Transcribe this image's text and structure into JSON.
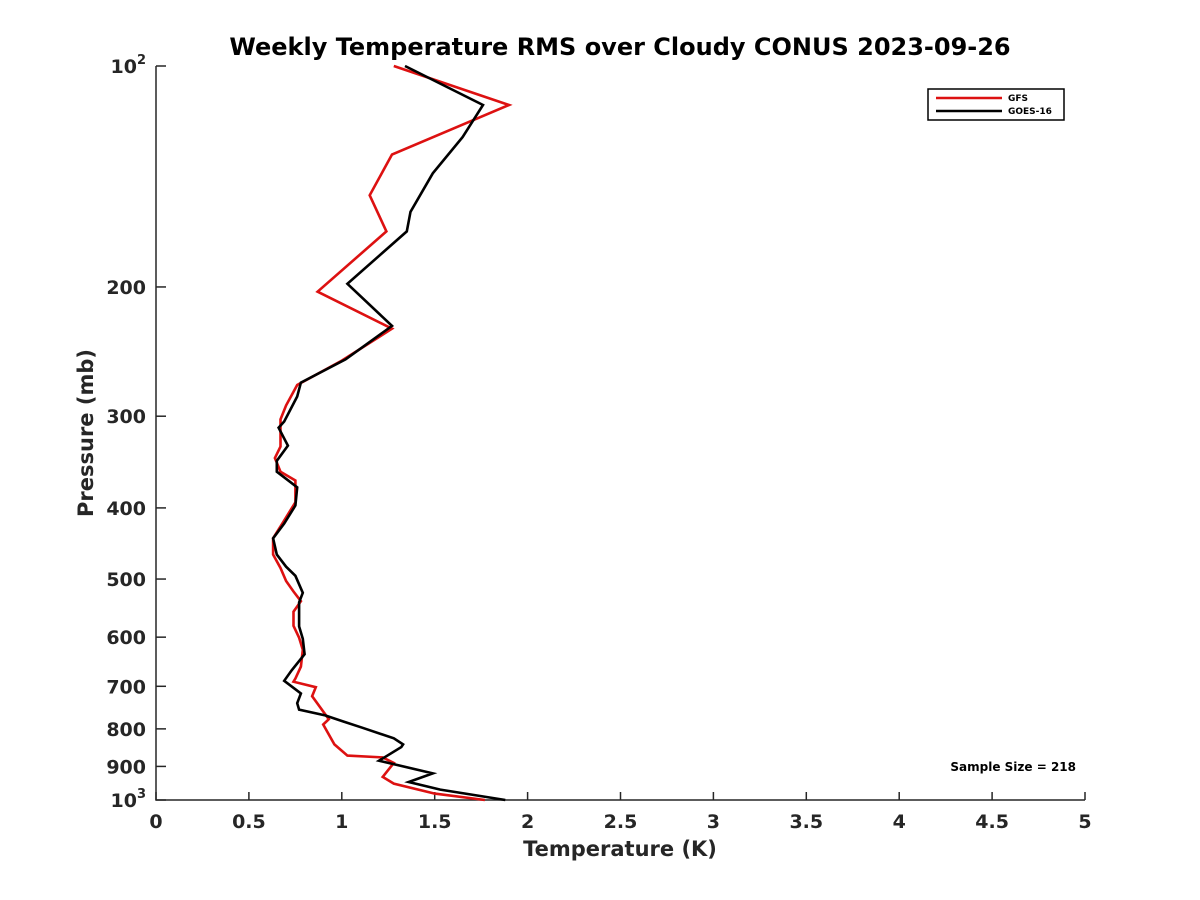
{
  "chart_data": {
    "type": "line",
    "title": "Weekly Temperature RMS over Cloudy CONUS 2023-09-26",
    "xlabel": "Temperature (K)",
    "ylabel": "Pressure (mb)",
    "xlim": [
      0,
      5
    ],
    "ylim": [
      100,
      1000
    ],
    "y_scale": "log",
    "y_reversed": true,
    "grid": false,
    "legend_position": "top-right",
    "x_ticks": [
      {
        "value": 0,
        "label": "0"
      },
      {
        "value": 0.5,
        "label": "0.5"
      },
      {
        "value": 1,
        "label": "1"
      },
      {
        "value": 1.5,
        "label": "1.5"
      },
      {
        "value": 2,
        "label": "2"
      },
      {
        "value": 2.5,
        "label": "2.5"
      },
      {
        "value": 3,
        "label": "3"
      },
      {
        "value": 3.5,
        "label": "3.5"
      },
      {
        "value": 4,
        "label": "4"
      },
      {
        "value": 4.5,
        "label": "4.5"
      },
      {
        "value": 5,
        "label": "5"
      }
    ],
    "y_ticks": [
      {
        "value": 100,
        "base": "10",
        "exp": "2"
      },
      {
        "value": 200,
        "label": "200"
      },
      {
        "value": 300,
        "label": "300"
      },
      {
        "value": 400,
        "label": "400"
      },
      {
        "value": 500,
        "label": "500"
      },
      {
        "value": 600,
        "label": "600"
      },
      {
        "value": 700,
        "label": "700"
      },
      {
        "value": 800,
        "label": "800"
      },
      {
        "value": 900,
        "label": "900"
      },
      {
        "value": 1000,
        "base": "10",
        "exp": "3"
      }
    ],
    "series": [
      {
        "name": "GFS",
        "color": "#dd1111",
        "x": [
          1.28,
          1.9,
          1.27,
          1.15,
          1.24,
          0.87,
          1.27,
          1.0,
          0.76,
          0.7,
          0.67,
          0.67,
          0.64,
          0.67,
          0.75,
          0.75,
          0.68,
          0.63,
          0.63,
          0.67,
          0.7,
          0.74,
          0.78,
          0.74,
          0.74,
          0.77,
          0.79,
          0.78,
          0.75,
          0.74,
          0.86,
          0.84,
          0.93,
          0.9,
          0.96,
          1.03,
          1.22,
          1.28,
          1.22,
          1.28,
          1.5,
          1.77
        ],
        "y": [
          100,
          113,
          132,
          150,
          168,
          203,
          228,
          252,
          272,
          290,
          303,
          330,
          342,
          357,
          367,
          393,
          420,
          440,
          463,
          483,
          503,
          520,
          536,
          554,
          579,
          601,
          624,
          658,
          683,
          690,
          702,
          722,
          776,
          789,
          840,
          870,
          875,
          890,
          930,
          950,
          980,
          1000
        ]
      },
      {
        "name": "GOES-16",
        "color": "#000000",
        "x": [
          1.34,
          1.76,
          1.65,
          1.49,
          1.37,
          1.35,
          1.03,
          1.27,
          1.02,
          0.78,
          0.76,
          0.69,
          0.66,
          0.71,
          0.65,
          0.65,
          0.76,
          0.75,
          0.69,
          0.63,
          0.65,
          0.7,
          0.75,
          0.79,
          0.77,
          0.77,
          0.79,
          0.8,
          0.73,
          0.69,
          0.78,
          0.76,
          0.77,
          0.91,
          1.01,
          1.11,
          1.28,
          1.33,
          1.32,
          1.2,
          1.49,
          1.36,
          1.53,
          1.88
        ],
        "y": [
          100,
          113,
          125,
          140,
          158,
          168,
          198,
          226,
          251,
          270,
          282,
          305,
          311,
          329,
          345,
          357,
          375,
          397,
          420,
          440,
          463,
          481,
          495,
          522,
          538,
          580,
          603,
          633,
          666,
          688,
          716,
          738,
          753,
          767,
          782,
          797,
          824,
          840,
          847,
          884,
          920,
          945,
          968,
          1000
        ]
      }
    ],
    "annotations": [
      {
        "text": "Sample Size = 218",
        "position": "bottom-right"
      }
    ]
  }
}
